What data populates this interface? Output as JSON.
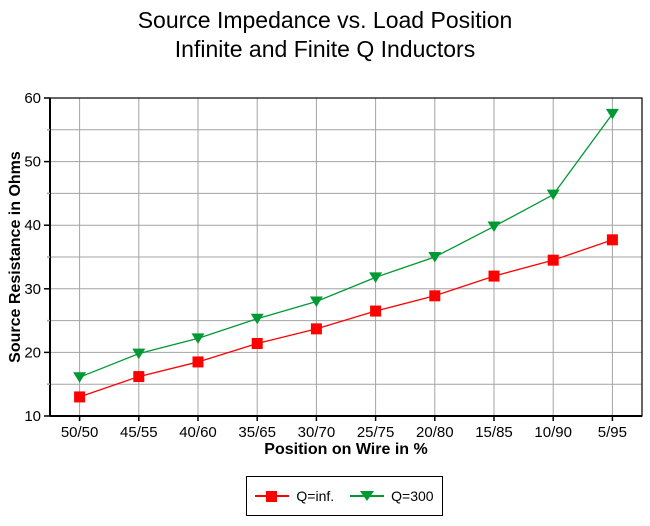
{
  "chart": {
    "title_line1": "Source Impedance vs. Load Position",
    "title_line2": "Infinite and Finite Q Inductors",
    "ylabel": "Source Resistance in Ohms",
    "xlabel": "Position on Wire in %"
  },
  "legend": {
    "items": [
      {
        "label": "Q=inf.",
        "marker": "square",
        "color": "#ff0000"
      },
      {
        "label": "Q=300",
        "marker": "triangle-down",
        "color": "#009933"
      }
    ]
  },
  "colors": {
    "grid": "#a3a3a3",
    "axis": "#000000",
    "background": "#ffffff",
    "series_red": "#ff0000",
    "series_green": "#009933"
  },
  "chart_data": {
    "type": "line",
    "title": "Source Impedance vs. Load Position — Infinite and Finite Q Inductors",
    "xlabel": "Position on Wire in %",
    "ylabel": "Source Resistance in Ohms",
    "categories": [
      "50/50",
      "45/55",
      "40/60",
      "35/65",
      "30/70",
      "25/75",
      "20/80",
      "15/85",
      "10/90",
      "5/95"
    ],
    "series": [
      {
        "name": "Q=inf.",
        "marker": "square",
        "color": "#ff0000",
        "values": [
          13.0,
          16.2,
          18.5,
          21.4,
          23.7,
          26.5,
          28.9,
          32.0,
          34.5,
          37.7
        ]
      },
      {
        "name": "Q=300",
        "marker": "triangle-down",
        "color": "#009933",
        "values": [
          16.1,
          19.8,
          22.2,
          25.3,
          28.0,
          31.8,
          35.0,
          39.8,
          44.8,
          57.5
        ]
      }
    ],
    "ylim": [
      10,
      60
    ],
    "ytick_step": 5,
    "ylabel_step": 10,
    "grid": true,
    "legend_position": "bottom"
  }
}
